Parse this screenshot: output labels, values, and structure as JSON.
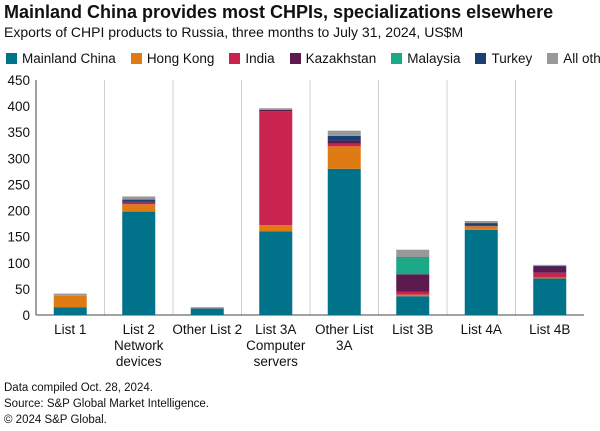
{
  "chart_data": {
    "type": "bar",
    "stacked": true,
    "title": "Mainland China provides most CHPIs, specializations elsewhere",
    "subtitle": "Exports of CHPI products to Russia, three months to July 31, 2024, US$M",
    "xlabel": "",
    "ylabel": "",
    "ylim": [
      0,
      450
    ],
    "yticks": [
      0,
      50,
      100,
      150,
      200,
      250,
      300,
      350,
      400,
      450
    ],
    "categories": [
      [
        "List 1"
      ],
      [
        "List 2",
        "Network",
        "devices"
      ],
      [
        "Other List 2"
      ],
      [
        "List 3A",
        "Computer",
        "servers"
      ],
      [
        "Other List",
        "3A"
      ],
      [
        "List 3B"
      ],
      [
        "List 4A"
      ],
      [
        "List 4B"
      ]
    ],
    "series": [
      {
        "name": "Mainland China",
        "color": "#00728a",
        "values": [
          15,
          198,
          12,
          160,
          280,
          36,
          163,
          70
        ]
      },
      {
        "name": "Hong Kong",
        "color": "#e07b14",
        "values": [
          22,
          14,
          0,
          12,
          43,
          3,
          7,
          2
        ]
      },
      {
        "name": "India",
        "color": "#c8244f",
        "values": [
          0,
          3,
          0,
          218,
          5,
          6,
          0,
          9
        ]
      },
      {
        "name": "Kazakhstan",
        "color": "#5c1a4e",
        "values": [
          0,
          3,
          0,
          3,
          6,
          33,
          2,
          12
        ]
      },
      {
        "name": "Malaysia",
        "color": "#1aa887",
        "values": [
          0,
          0,
          0,
          0,
          0,
          31,
          0,
          0
        ]
      },
      {
        "name": "Turkey",
        "color": "#1b3f72",
        "values": [
          0,
          3,
          1,
          0,
          9,
          1,
          4,
          1
        ]
      },
      {
        "name": "All others",
        "color": "#999999",
        "values": [
          4,
          6,
          2,
          3,
          10,
          15,
          4,
          2
        ]
      }
    ]
  },
  "footer": {
    "line1": "Data compiled Oct. 28, 2024.",
    "line2": "Source: S&P Global Market Intelligence.",
    "line3": "© 2024 S&P Global."
  }
}
